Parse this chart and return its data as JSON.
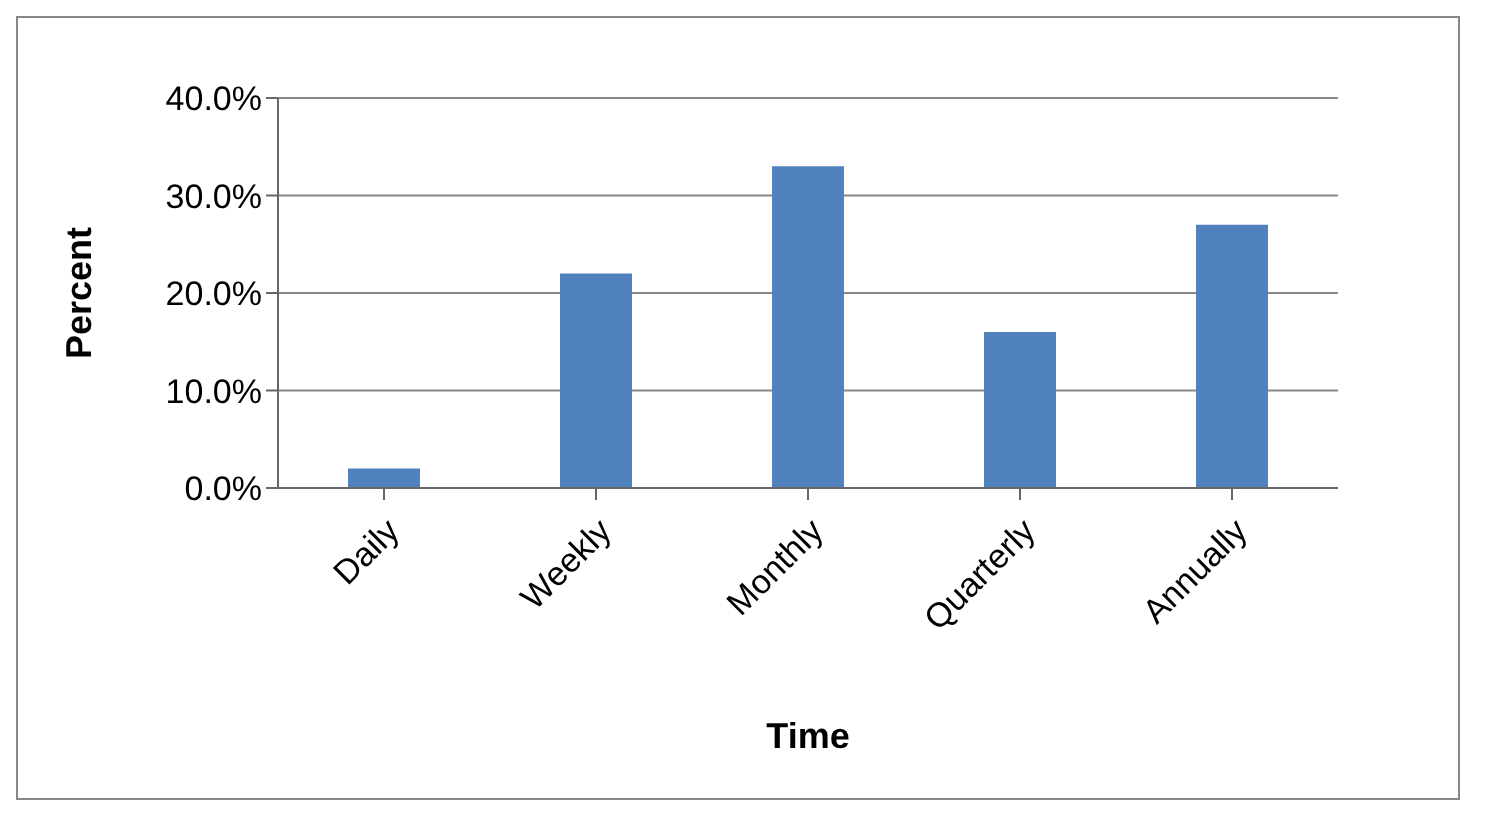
{
  "chart_data": {
    "type": "bar",
    "xlabel": "Time",
    "ylabel": "Percent",
    "categories": [
      "Daily",
      "Weekly",
      "Monthly",
      "Quarterly",
      "Annually"
    ],
    "values": [
      2,
      22,
      33,
      16,
      27
    ],
    "color": "#4f81bd",
    "ylim": [
      0,
      40
    ],
    "yticks": [
      {
        "value": 0,
        "label": "0.0%"
      },
      {
        "value": 10,
        "label": "10.0%"
      },
      {
        "value": 20,
        "label": "20.0%"
      },
      {
        "value": 30,
        "label": "30.0%"
      },
      {
        "value": 40,
        "label": "40.0%"
      }
    ],
    "grid": "y"
  }
}
